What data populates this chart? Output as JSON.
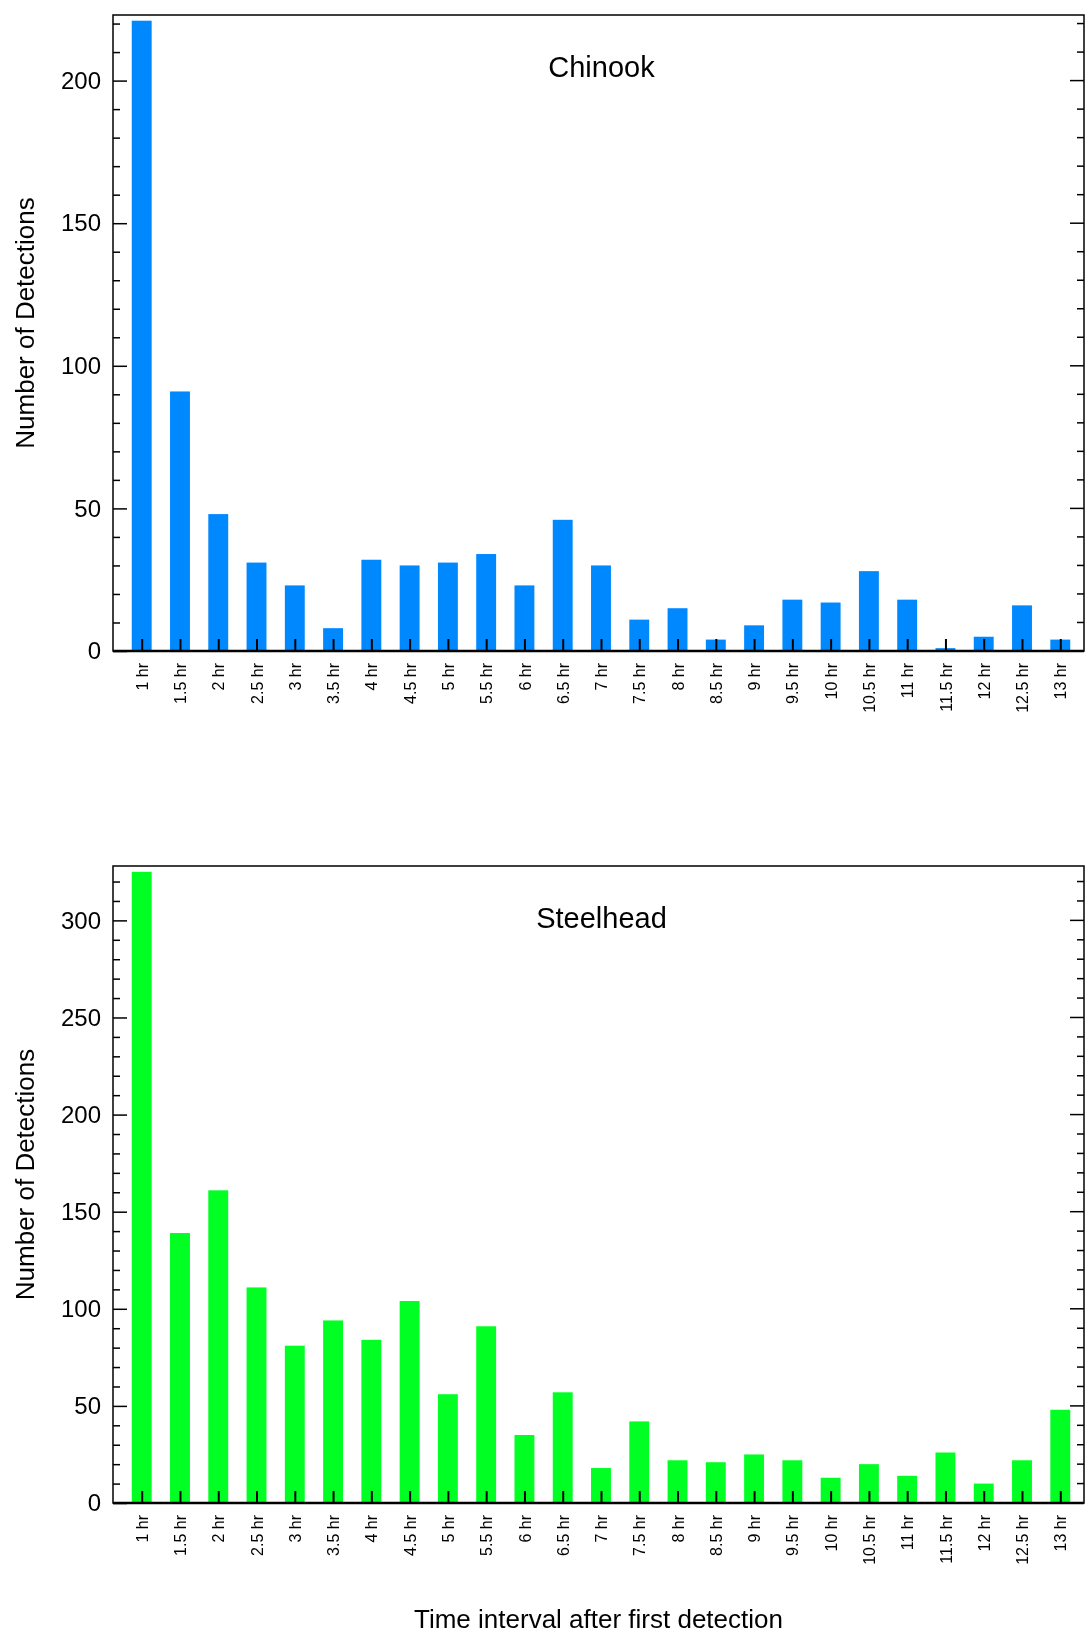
{
  "chart_data": [
    {
      "type": "bar",
      "title": "Chinook",
      "ylabel": "Number of Detections",
      "categories": [
        "1 hr",
        "1.5 hr",
        "2 hr",
        "2.5 hr",
        "3 hr",
        "3.5 hr",
        "4 hr",
        "4.5 hr",
        "5 hr",
        "5.5 hr",
        "6 hr",
        "6.5 hr",
        "7 hr",
        "7.5 hr",
        "8 hr",
        "8.5 hr",
        "9 hr",
        "9.5 hr",
        "10 hr",
        "10.5 hr",
        "11 hr",
        "11.5 hr",
        "12 hr",
        "12.5 hr",
        "13 hr"
      ],
      "values": [
        221,
        91,
        48,
        31,
        23,
        8,
        32,
        30,
        31,
        34,
        23,
        46,
        30,
        11,
        15,
        4,
        9,
        18,
        17,
        28,
        18,
        1,
        5,
        16,
        4
      ],
      "color": "#0088ff",
      "ylim": [
        0,
        223
      ],
      "yticks": [
        0,
        {
          "value": 10,
          "label": null
        },
        {
          "value": 20,
          "label": null
        },
        {
          "value": 30,
          "label": null
        },
        {
          "value": 40,
          "label": null
        },
        50,
        {
          "value": 60,
          "label": null
        },
        {
          "value": 70,
          "label": null
        },
        {
          "value": 80,
          "label": null
        },
        {
          "value": 90,
          "label": null
        },
        100,
        {
          "value": 110,
          "label": null
        },
        {
          "value": 120,
          "label": null
        },
        {
          "value": 130,
          "label": null
        },
        {
          "value": 140,
          "label": null
        },
        150,
        {
          "value": 160,
          "label": null
        },
        {
          "value": 170,
          "label": null
        },
        {
          "value": 180,
          "label": null
        },
        {
          "value": 190,
          "label": null
        },
        200,
        {
          "value": 210,
          "label": null
        },
        {
          "value": 220,
          "label": null
        }
      ]
    },
    {
      "type": "bar",
      "title": "Steelhead",
      "ylabel": "Number of Detections",
      "xlabel": "Time interval after first detection",
      "categories": [
        "1 hr",
        "1.5 hr",
        "2 hr",
        "2.5 hr",
        "3 hr",
        "3.5 hr",
        "4 hr",
        "4.5 hr",
        "5 hr",
        "5.5 hr",
        "6 hr",
        "6.5 hr",
        "7 hr",
        "7.5 hr",
        "8 hr",
        "8.5 hr",
        "9 hr",
        "9.5 hr",
        "10 hr",
        "10.5 hr",
        "11 hr",
        "11.5 hr",
        "12 hr",
        "12.5 hr",
        "13 hr"
      ],
      "values": [
        325,
        139,
        161,
        111,
        81,
        94,
        84,
        104,
        56,
        91,
        35,
        57,
        18,
        42,
        22,
        21,
        25,
        22,
        13,
        20,
        14,
        26,
        10,
        22,
        48
      ],
      "color": "#00ff22",
      "ylim": [
        0,
        328
      ],
      "yticks": [
        0,
        {
          "value": 10,
          "label": null
        },
        {
          "value": 20,
          "label": null
        },
        {
          "value": 30,
          "label": null
        },
        {
          "value": 40,
          "label": null
        },
        50,
        {
          "value": 60,
          "label": null
        },
        {
          "value": 70,
          "label": null
        },
        {
          "value": 80,
          "label": null
        },
        {
          "value": 90,
          "label": null
        },
        100,
        {
          "value": 110,
          "label": null
        },
        {
          "value": 120,
          "label": null
        },
        {
          "value": 130,
          "label": null
        },
        {
          "value": 140,
          "label": null
        },
        150,
        {
          "value": 160,
          "label": null
        },
        {
          "value": 170,
          "label": null
        },
        {
          "value": 180,
          "label": null
        },
        {
          "value": 190,
          "label": null
        },
        200,
        {
          "value": 210,
          "label": null
        },
        {
          "value": 220,
          "label": null
        },
        {
          "value": 230,
          "label": null
        },
        {
          "value": 240,
          "label": null
        },
        250,
        {
          "value": 260,
          "label": null
        },
        {
          "value": 270,
          "label": null
        },
        {
          "value": 280,
          "label": null
        },
        {
          "value": 290,
          "label": null
        },
        300,
        {
          "value": 310,
          "label": null
        },
        {
          "value": 320,
          "label": null
        }
      ]
    }
  ]
}
